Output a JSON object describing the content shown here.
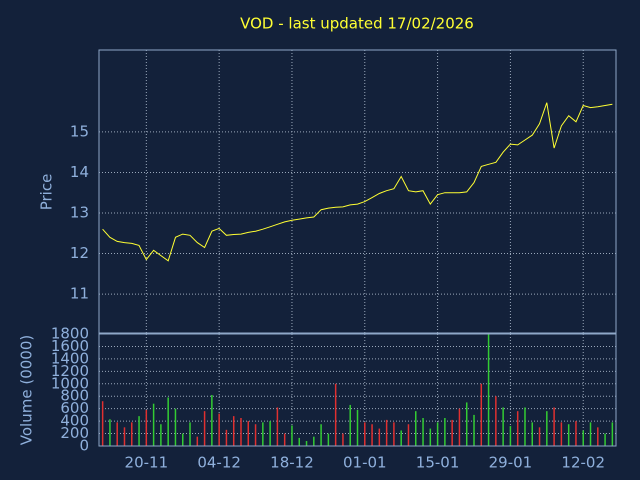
{
  "title": "VOD - last updated 17/02/2026",
  "chart_data": [
    {
      "type": "line",
      "ylabel": "Price",
      "color": "#ffff33",
      "values": [
        12.6,
        12.4,
        12.3,
        12.27,
        12.25,
        12.2,
        11.85,
        12.08,
        11.95,
        11.82,
        12.4,
        12.48,
        12.45,
        12.27,
        12.15,
        12.55,
        12.62,
        12.45,
        12.47,
        12.48,
        12.52,
        12.55,
        12.6,
        12.66,
        12.72,
        12.78,
        12.82,
        12.85,
        12.88,
        12.9,
        13.08,
        13.12,
        13.14,
        13.15,
        13.2,
        13.22,
        13.28,
        13.38,
        13.48,
        13.55,
        13.6,
        13.9,
        13.55,
        13.52,
        13.55,
        13.22,
        13.45,
        13.5,
        13.5,
        13.5,
        13.52,
        13.75,
        14.15,
        14.2,
        14.25,
        14.5,
        14.7,
        14.68,
        14.8,
        14.92,
        15.2,
        15.72,
        14.6,
        15.15,
        15.4,
        15.25,
        15.65,
        15.6,
        15.62,
        15.65,
        15.68
      ],
      "ylim": [
        10.04,
        17.02
      ],
      "yticks": [
        11,
        12,
        13,
        14,
        15
      ],
      "grid": true
    },
    {
      "type": "bar",
      "ylabel": "Volume (0000)",
      "categories": [
        null,
        null,
        null,
        null,
        null,
        null,
        "20-11",
        null,
        null,
        null,
        null,
        null,
        null,
        null,
        null,
        null,
        "04-12",
        null,
        null,
        null,
        null,
        null,
        null,
        null,
        null,
        null,
        "18-12",
        null,
        null,
        null,
        null,
        null,
        null,
        null,
        null,
        null,
        "01-01",
        null,
        null,
        null,
        null,
        null,
        null,
        null,
        null,
        null,
        "15-01",
        null,
        null,
        null,
        null,
        null,
        null,
        null,
        null,
        null,
        "29-01",
        null,
        null,
        null,
        null,
        null,
        null,
        null,
        null,
        null,
        "12-02",
        null,
        null,
        null,
        null
      ],
      "values": [
        720,
        430,
        380,
        300,
        380,
        480,
        580,
        680,
        350,
        780,
        600,
        200,
        380,
        150,
        560,
        820,
        520,
        260,
        480,
        450,
        400,
        350,
        380,
        400,
        620,
        200,
        330,
        130,
        80,
        150,
        350,
        200,
        1000,
        200,
        660,
        580,
        380,
        350,
        280,
        420,
        380,
        250,
        350,
        560,
        450,
        280,
        380,
        450,
        420,
        600,
        700,
        500,
        1000,
        1800,
        800,
        620,
        320,
        560,
        620,
        380,
        300,
        560,
        620,
        380,
        350,
        400,
        250,
        380,
        300,
        200,
        380
      ],
      "bar_colors": [
        "#e03030",
        "#33cc33",
        "#e03030",
        "#e03030",
        "#e03030",
        "#33cc33",
        "#e03030",
        "#33cc33",
        "#33cc33",
        "#33cc33",
        "#33cc33",
        "#33cc33",
        "#33cc33",
        "#e03030",
        "#e03030",
        "#33cc33",
        "#e03030",
        "#e03030",
        "#e03030",
        "#e03030",
        "#e03030",
        "#e03030",
        "#33cc33",
        "#33cc33",
        "#e03030",
        "#e03030",
        "#33cc33",
        "#33cc33",
        "#33cc33",
        "#33cc33",
        "#33cc33",
        "#33cc33",
        "#e03030",
        "#e03030",
        "#33cc33",
        "#33cc33",
        "#e03030",
        "#e03030",
        "#e03030",
        "#e03030",
        "#e03030",
        "#33cc33",
        "#e03030",
        "#33cc33",
        "#33cc33",
        "#33cc33",
        "#33cc33",
        "#33cc33",
        "#e03030",
        "#e03030",
        "#33cc33",
        "#33cc33",
        "#e03030",
        "#33cc33",
        "#e03030",
        "#33cc33",
        "#33cc33",
        "#e03030",
        "#33cc33",
        "#33cc33",
        "#e03030",
        "#33cc33",
        "#e03030",
        "#e03030",
        "#33cc33",
        "#e03030",
        "#33cc33",
        "#33cc33",
        "#e03030",
        "#33cc33",
        "#33cc33"
      ],
      "ylim": [
        0,
        1800
      ],
      "yticks": [
        0,
        200,
        400,
        600,
        800,
        1000,
        1200,
        1400,
        1600,
        1800
      ],
      "grid": true
    }
  ]
}
